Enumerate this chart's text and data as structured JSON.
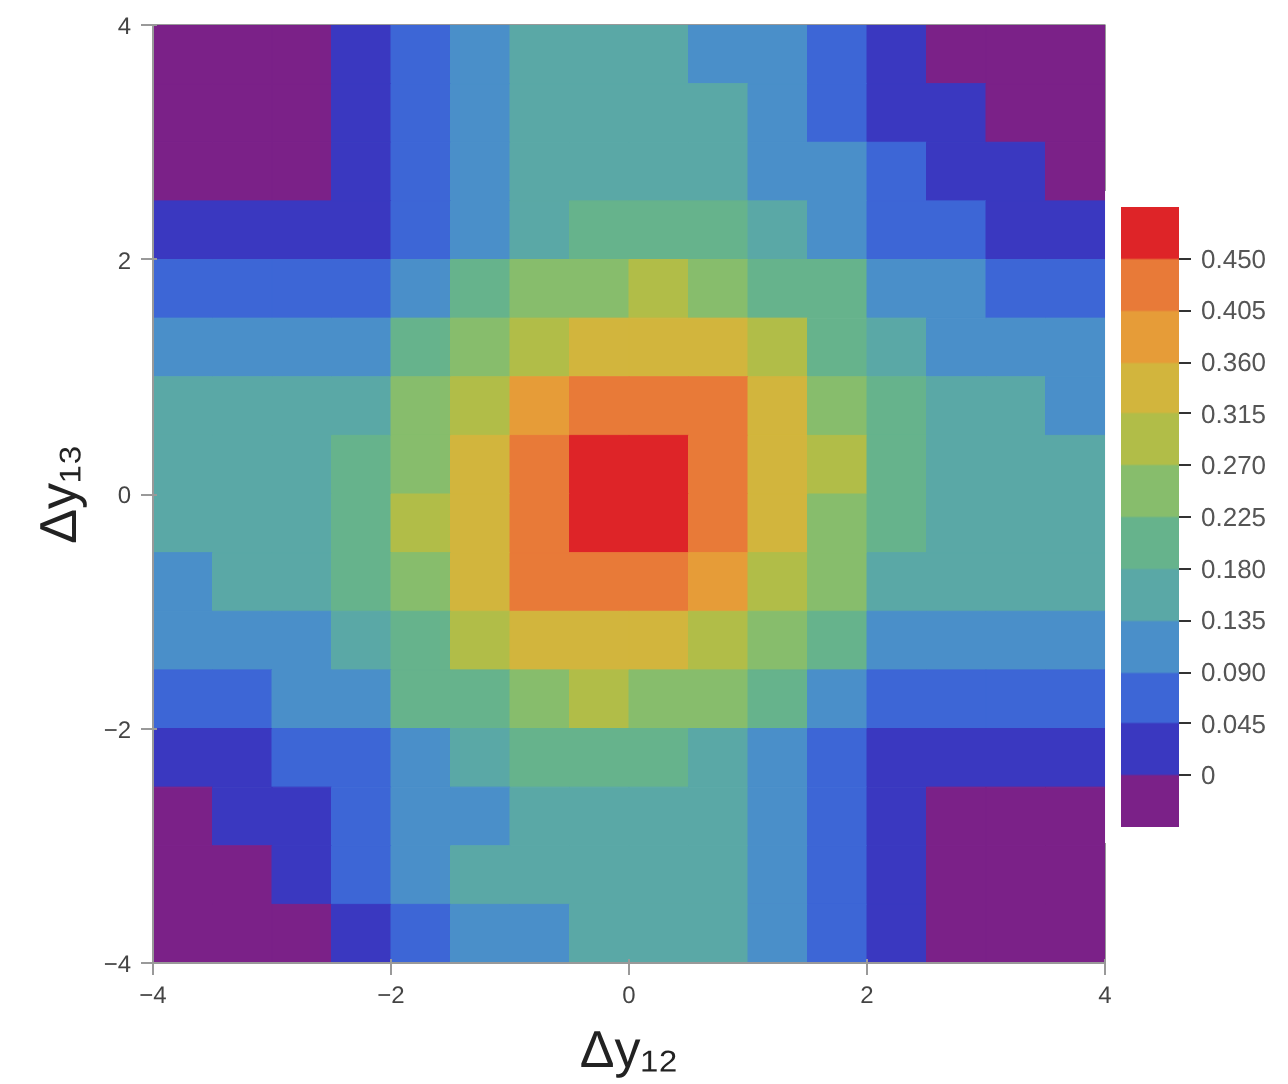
{
  "chart_data": {
    "type": "heatmap",
    "xlabel": "Δy₁₂",
    "ylabel": "Δy₁₃",
    "x": [
      -3.75,
      -3.25,
      -2.75,
      -2.25,
      -1.75,
      -1.25,
      -0.75,
      -0.25,
      0.25,
      0.75,
      1.25,
      1.75,
      2.25,
      2.75,
      3.25,
      3.75
    ],
    "y": [
      3.75,
      3.25,
      2.75,
      2.25,
      1.75,
      1.25,
      0.75,
      0.25,
      -0.25,
      -0.75,
      -1.25,
      -1.75,
      -2.25,
      -2.75,
      -3.25,
      -3.75
    ],
    "xlim": [
      -4,
      4
    ],
    "ylim": [
      -4,
      4
    ],
    "xticks": [
      -4,
      -2,
      0,
      2,
      4
    ],
    "yticks": [
      -4,
      -2,
      0,
      2,
      4
    ],
    "clim": [
      -0.045,
      0.495
    ],
    "cticks": [
      0,
      {
        "value": 0.045,
        "label": "0.045"
      },
      {
        "value": 0.09,
        "label": "0.090"
      },
      {
        "value": 0.135,
        "label": "0.135"
      },
      {
        "value": 0.18,
        "label": "0.180"
      },
      {
        "value": 0.225,
        "label": "0.225"
      },
      {
        "value": 0.27,
        "label": "0.270"
      },
      {
        "value": 0.315,
        "label": "0.315"
      },
      {
        "value": 0.36,
        "label": "0.360"
      },
      {
        "value": 0.405,
        "label": "0.405"
      },
      {
        "value": 0.45,
        "label": "0.450"
      }
    ],
    "colors": [
      "#7b2188",
      "#3a38c0",
      "#3d66d6",
      "#4a8fc9",
      "#5aa8a6",
      "#66b38c",
      "#87bd6c",
      "#b1bd48",
      "#d2b53d",
      "#e69c38",
      "#e87a38",
      "#de2428"
    ],
    "cells": [
      [
        -0.02,
        -0.02,
        -0.02,
        0.02,
        0.07,
        0.11,
        0.16,
        0.16,
        0.16,
        0.11,
        0.11,
        0.07,
        0.02,
        -0.02,
        -0.02,
        -0.02
      ],
      [
        -0.02,
        -0.02,
        -0.02,
        0.02,
        0.07,
        0.11,
        0.16,
        0.16,
        0.16,
        0.16,
        0.11,
        0.07,
        0.02,
        0.02,
        -0.02,
        -0.02
      ],
      [
        -0.02,
        -0.02,
        -0.02,
        0.02,
        0.07,
        0.11,
        0.16,
        0.16,
        0.16,
        0.16,
        0.11,
        0.11,
        0.07,
        0.02,
        0.02,
        -0.02
      ],
      [
        0.02,
        0.02,
        0.02,
        0.02,
        0.07,
        0.11,
        0.16,
        0.2,
        0.2,
        0.2,
        0.16,
        0.11,
        0.07,
        0.07,
        0.02,
        0.02
      ],
      [
        0.07,
        0.07,
        0.07,
        0.07,
        0.11,
        0.2,
        0.25,
        0.25,
        0.29,
        0.25,
        0.2,
        0.2,
        0.11,
        0.11,
        0.07,
        0.07
      ],
      [
        0.11,
        0.11,
        0.11,
        0.11,
        0.2,
        0.25,
        0.29,
        0.34,
        0.34,
        0.34,
        0.29,
        0.2,
        0.16,
        0.11,
        0.11,
        0.11
      ],
      [
        0.16,
        0.16,
        0.16,
        0.16,
        0.25,
        0.29,
        0.38,
        0.43,
        0.43,
        0.43,
        0.34,
        0.25,
        0.2,
        0.16,
        0.16,
        0.11
      ],
      [
        0.16,
        0.16,
        0.16,
        0.2,
        0.25,
        0.34,
        0.43,
        0.47,
        0.47,
        0.43,
        0.34,
        0.29,
        0.2,
        0.16,
        0.16,
        0.16
      ],
      [
        0.16,
        0.16,
        0.16,
        0.2,
        0.29,
        0.34,
        0.43,
        0.47,
        0.47,
        0.43,
        0.34,
        0.25,
        0.2,
        0.16,
        0.16,
        0.16
      ],
      [
        0.11,
        0.16,
        0.16,
        0.2,
        0.25,
        0.34,
        0.43,
        0.43,
        0.43,
        0.38,
        0.29,
        0.25,
        0.16,
        0.16,
        0.16,
        0.16
      ],
      [
        0.11,
        0.11,
        0.11,
        0.16,
        0.2,
        0.29,
        0.34,
        0.34,
        0.34,
        0.29,
        0.25,
        0.2,
        0.11,
        0.11,
        0.11,
        0.11
      ],
      [
        0.07,
        0.07,
        0.11,
        0.11,
        0.2,
        0.2,
        0.25,
        0.29,
        0.25,
        0.25,
        0.2,
        0.11,
        0.07,
        0.07,
        0.07,
        0.07
      ],
      [
        0.02,
        0.02,
        0.07,
        0.07,
        0.11,
        0.16,
        0.2,
        0.2,
        0.2,
        0.16,
        0.11,
        0.07,
        0.02,
        0.02,
        0.02,
        0.02
      ],
      [
        -0.02,
        0.02,
        0.02,
        0.07,
        0.11,
        0.11,
        0.16,
        0.16,
        0.16,
        0.16,
        0.11,
        0.07,
        0.02,
        -0.02,
        -0.02,
        -0.02
      ],
      [
        -0.02,
        -0.02,
        0.02,
        0.07,
        0.11,
        0.16,
        0.16,
        0.16,
        0.16,
        0.16,
        0.11,
        0.07,
        0.02,
        -0.02,
        -0.02,
        -0.02
      ],
      [
        -0.02,
        -0.02,
        -0.02,
        0.02,
        0.07,
        0.11,
        0.11,
        0.16,
        0.16,
        0.16,
        0.11,
        0.07,
        0.02,
        -0.02,
        -0.02,
        -0.02
      ]
    ]
  }
}
